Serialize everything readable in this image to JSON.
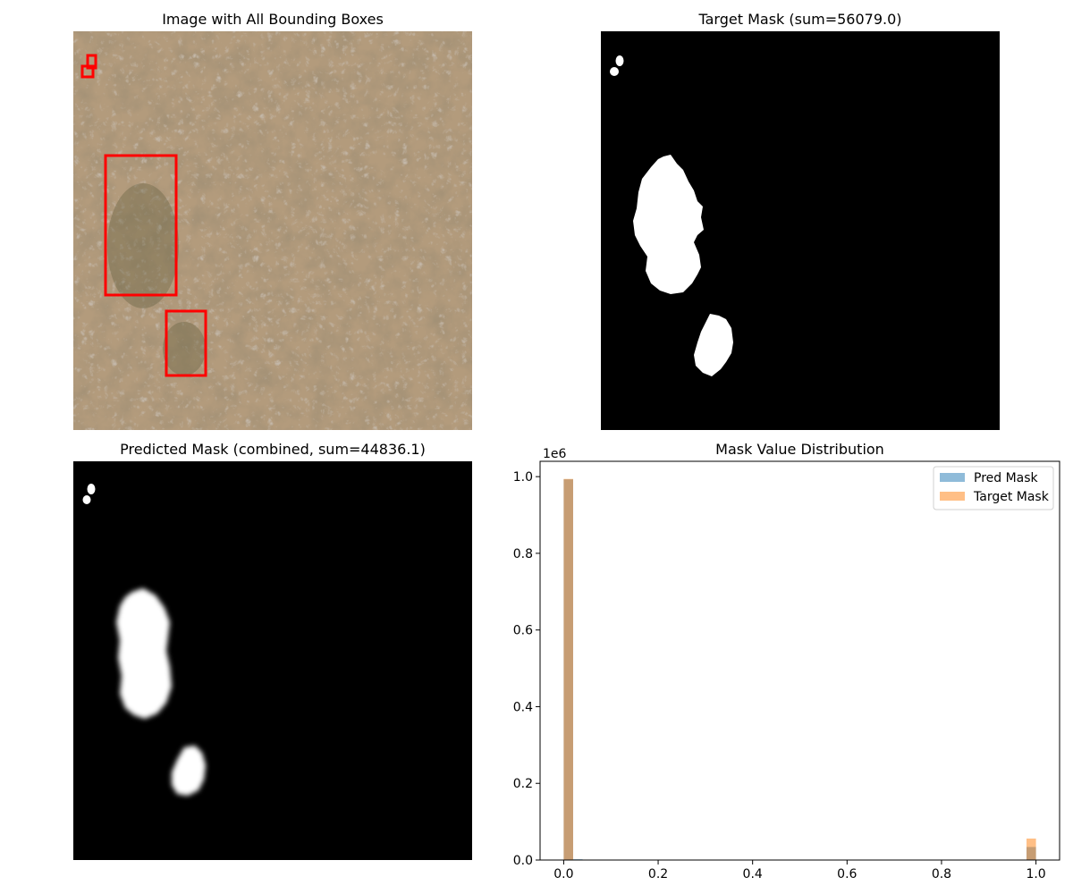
{
  "panels": {
    "image_title": "Image with All Bounding Boxes",
    "target_title": "Target Mask (sum=56079.0)",
    "pred_title": "Predicted Mask (combined, sum=44836.1)"
  },
  "colors": {
    "bbox": "#ff0000",
    "terrain_base": "#b39b7c",
    "mask_bg": "#000000",
    "mask_fg": "#ffffff",
    "pred_series": "#1f77b4",
    "target_series": "#ff7f0e",
    "overlap": "#c8a07b"
  },
  "chart_data": {
    "type": "bar",
    "title": "Mask Value Distribution",
    "xlabel": "",
    "ylabel": "",
    "y_offset_label": "1e6",
    "xlim": [
      -0.05,
      1.05
    ],
    "ylim": [
      0,
      1.04
    ],
    "x_ticks": [
      0.0,
      0.2,
      0.4,
      0.6,
      0.8,
      1.0
    ],
    "x_tick_labels": [
      "0.0",
      "0.2",
      "0.4",
      "0.6",
      "0.8",
      "1.0"
    ],
    "y_ticks": [
      0.0,
      0.2,
      0.4,
      0.6,
      0.8,
      1.0
    ],
    "y_tick_labels": [
      "0.0",
      "0.2",
      "0.4",
      "0.6",
      "0.8",
      "1.0"
    ],
    "bin_width": 0.02,
    "legend_position": "top-right",
    "series": [
      {
        "name": "Pred Mask",
        "bins": [
          [
            0.0,
            0.993
          ],
          [
            0.02,
            0.002
          ],
          [
            0.98,
            0.034
          ]
        ]
      },
      {
        "name": "Target Mask",
        "bins": [
          [
            0.0,
            0.994
          ],
          [
            0.98,
            0.056
          ]
        ]
      }
    ]
  }
}
